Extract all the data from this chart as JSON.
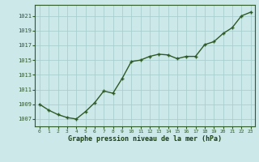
{
  "x": [
    0,
    1,
    2,
    3,
    4,
    5,
    6,
    7,
    8,
    9,
    10,
    11,
    12,
    13,
    14,
    15,
    16,
    17,
    18,
    19,
    20,
    21,
    22,
    23
  ],
  "y": [
    1009.0,
    1008.2,
    1007.6,
    1007.2,
    1007.0,
    1008.0,
    1009.2,
    1010.8,
    1010.5,
    1012.5,
    1014.8,
    1015.0,
    1015.5,
    1015.8,
    1015.7,
    1015.2,
    1015.5,
    1015.5,
    1017.1,
    1017.5,
    1018.6,
    1019.4,
    1021.0,
    1021.5
  ],
  "line_color": "#2d5a27",
  "marker_color": "#2d5a27",
  "bg_color": "#cce8e8",
  "grid_color": "#aacece",
  "xlabel": "Graphe pression niveau de la mer (hPa)",
  "xlabel_color": "#1a4010",
  "tick_color": "#2d5a27",
  "ylim": [
    1006.0,
    1022.5
  ],
  "yticks": [
    1007,
    1009,
    1011,
    1013,
    1015,
    1017,
    1019,
    1021
  ],
  "xticks": [
    0,
    1,
    2,
    3,
    4,
    5,
    6,
    7,
    8,
    9,
    10,
    11,
    12,
    13,
    14,
    15,
    16,
    17,
    18,
    19,
    20,
    21,
    22,
    23
  ],
  "spine_color": "#2d5a27",
  "marker_size": 3.0,
  "line_width": 1.0
}
